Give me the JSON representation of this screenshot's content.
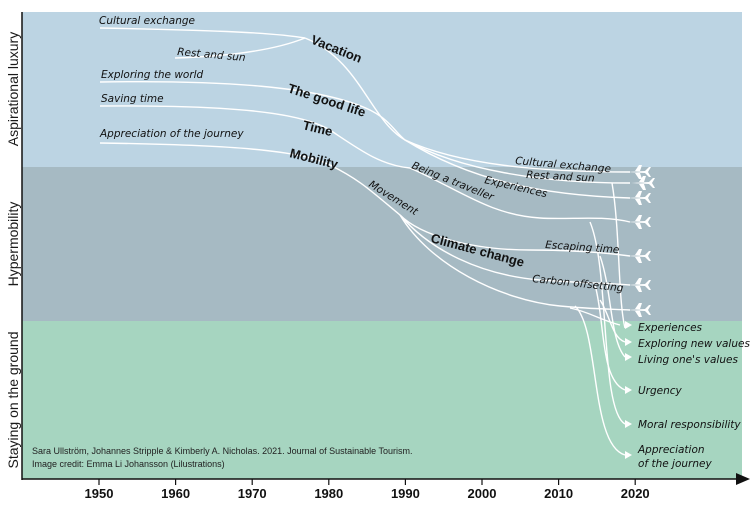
{
  "bands": [
    {
      "label": "Aspirational luxury",
      "color": "#bcd4e3"
    },
    {
      "label": "Hypermobility",
      "color": "#a6bac3"
    },
    {
      "label": "Staying on the ground",
      "color": "#a6d5c0"
    }
  ],
  "axis": {
    "ticks": [
      "1950",
      "1960",
      "1970",
      "1980",
      "1990",
      "2000",
      "2010",
      "2020"
    ]
  },
  "origin_labels": [
    "Cultural exchange",
    "Rest and sun",
    "Exploring the world",
    "Saving time",
    "Appreciation of the journey"
  ],
  "theme_labels": [
    "Vacation",
    "The good life",
    "Time",
    "Mobility",
    "Climate change"
  ],
  "mid_labels": [
    "Movement",
    "Being a traveller"
  ],
  "hypermobility_labels": [
    "Cultural exchange",
    "Rest and sun",
    "Experiences",
    "Escaping time",
    "Carbon offsetting"
  ],
  "ground_labels": [
    "Experiences",
    "Exploring new values",
    "Living one's values",
    "Urgency",
    "Moral responsibility",
    "Appreciation",
    "of the journey"
  ],
  "credit": {
    "line1": "Sara Ullström, Johannes Stripple & Kimberly A. Nicholas. 2021. Journal of Sustainable Tourism.",
    "line2": "Image credit: Emma Li Johansson (Lilustrations)"
  },
  "colors": {
    "flow": "#ffffff",
    "axis": "#111111",
    "text": "#111111"
  }
}
